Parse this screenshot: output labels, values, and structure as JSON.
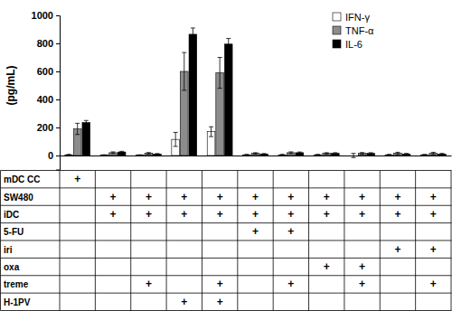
{
  "chart_data": {
    "type": "bar",
    "y_label": "(pg/mL)",
    "categories": [
      null,
      null,
      null,
      null,
      null,
      null,
      null,
      null,
      null,
      null,
      null
    ],
    "series": [
      {
        "name": "IFN-γ",
        "color": "#ffffff",
        "values": [
          5,
          2,
          2,
          115,
          170,
          5,
          5,
          5,
          0,
          5,
          5
        ],
        "errors": [
          3,
          3,
          3,
          50,
          35,
          3,
          3,
          3,
          15,
          3,
          3
        ]
      },
      {
        "name": "TNF-α",
        "color": "#8c8c8c",
        "values": [
          190,
          20,
          15,
          600,
          590,
          15,
          20,
          15,
          15,
          15,
          15
        ],
        "errors": [
          40,
          6,
          6,
          135,
          110,
          5,
          6,
          5,
          6,
          8,
          8
        ]
      },
      {
        "name": "IL-6",
        "color": "#000000",
        "values": [
          235,
          25,
          10,
          865,
          795,
          10,
          20,
          15,
          15,
          10,
          10
        ],
        "errors": [
          15,
          5,
          4,
          45,
          40,
          4,
          5,
          5,
          5,
          5,
          5
        ]
      }
    ],
    "ylim": [
      -100,
      1000
    ],
    "yticks": [
      0,
      200,
      400,
      600,
      800,
      1000
    ],
    "legend": "top-right",
    "grid": false
  },
  "table": {
    "rows": [
      {
        "label": "mDC CC",
        "cells": [
          "+",
          null,
          null,
          null,
          null,
          null,
          null,
          null,
          null,
          null,
          null
        ]
      },
      {
        "label": "SW480",
        "cells": [
          null,
          "+",
          "+",
          "+",
          "+",
          "+",
          "+",
          "+",
          "+",
          "+",
          "+"
        ]
      },
      {
        "label": "iDC",
        "cells": [
          null,
          "+",
          "+",
          "+",
          "+",
          "+",
          "+",
          "+",
          "+",
          "+",
          "+"
        ]
      },
      {
        "label": "5-FU",
        "cells": [
          null,
          null,
          null,
          null,
          null,
          "+",
          "+",
          null,
          null,
          null,
          null
        ]
      },
      {
        "label": "iri",
        "cells": [
          null,
          null,
          null,
          null,
          null,
          null,
          null,
          null,
          null,
          "+",
          "+"
        ]
      },
      {
        "label": "oxa",
        "cells": [
          null,
          null,
          null,
          null,
          null,
          null,
          null,
          "+",
          "+",
          null,
          null
        ]
      },
      {
        "label": "treme",
        "cells": [
          null,
          null,
          "+",
          null,
          "+",
          null,
          "+",
          null,
          "+",
          null,
          "+"
        ]
      },
      {
        "label": "H-1PV",
        "cells": [
          null,
          null,
          null,
          "+",
          "+",
          null,
          null,
          null,
          null,
          null,
          null
        ]
      }
    ]
  }
}
